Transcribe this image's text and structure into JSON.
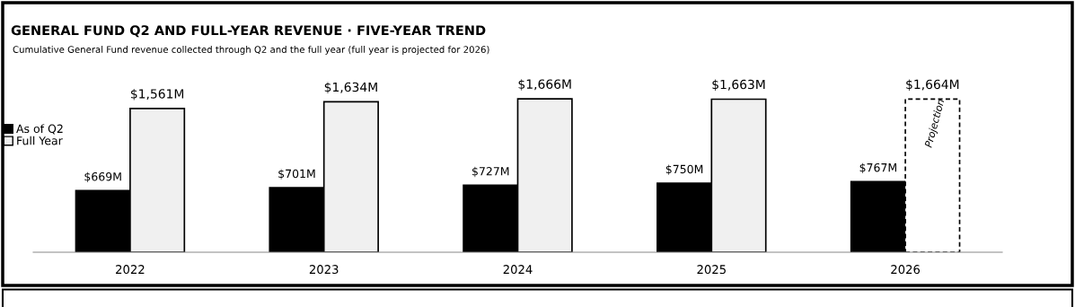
{
  "chart_data": {
    "type": "bar",
    "title": "GENERAL FUND Q2 AND FULL-YEAR REVENUE · FIVE-YEAR TREND",
    "subtitle": "Cumulative General Fund revenue collected through Q2 and the full year (full year is projected for 2026)",
    "categories": [
      "2022",
      "2023",
      "2024",
      "2025",
      "2026"
    ],
    "series": [
      {
        "name": "As of Q2",
        "color": "#000000",
        "values": [
          669,
          701,
          727,
          750,
          767
        ],
        "value_labels": [
          "$669M",
          "$701M",
          "$727M",
          "$750M",
          "$767M"
        ]
      },
      {
        "name": "Full Year",
        "color": "#f0f0f0",
        "colors": [
          "#f0f0f0",
          "#f0f0f0",
          "#f0f0f0",
          "#f0f0f0",
          "#ffffff"
        ],
        "line_style": [
          "solid",
          "solid",
          "solid",
          "solid",
          "dashed"
        ],
        "values": [
          1561,
          1634,
          1666,
          1663,
          1664
        ],
        "value_labels": [
          "$1,561M",
          "$1,634M",
          "$1,666M",
          "$1,663M",
          "$1,664M"
        ]
      }
    ],
    "annotations": [
      {
        "text": "Projection",
        "x": "2026",
        "y": 1400
      }
    ],
    "legend": "top left",
    "grid": false
  }
}
